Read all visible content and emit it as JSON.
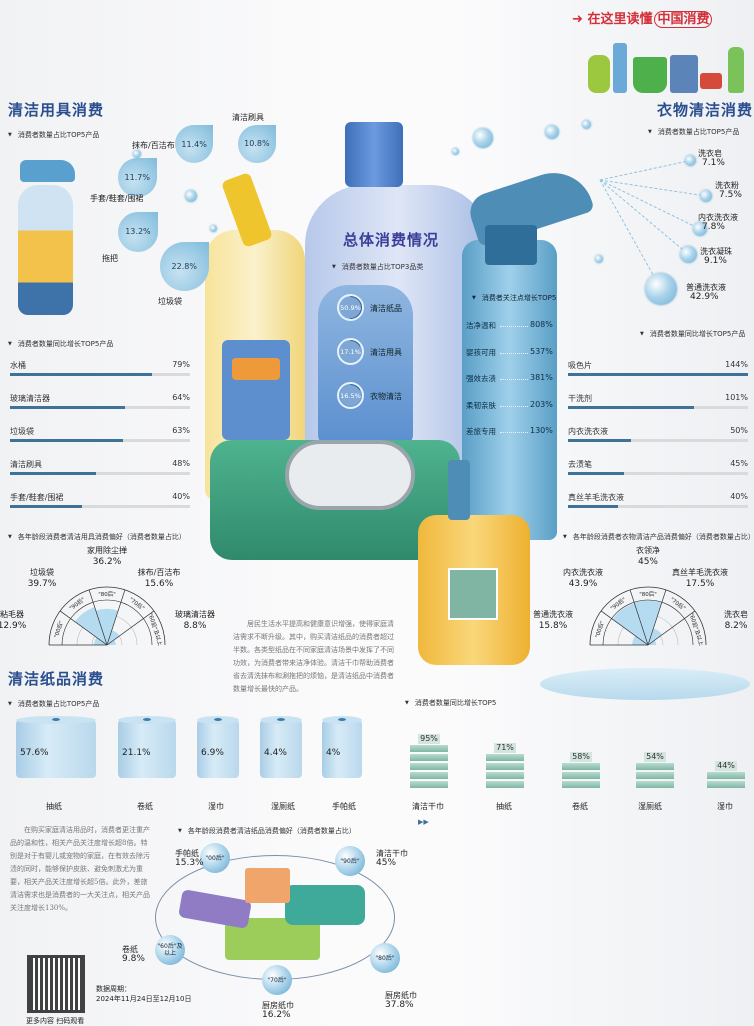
{
  "header": {
    "tagline_pre": "在这里读懂",
    "tagline_brand": "中国消费"
  },
  "sections": {
    "tools_title": "清洁用具消费",
    "laundry_title": "衣物清洁消费",
    "overall_title": "总体消费情况",
    "paper_title": "清洁纸品消费"
  },
  "paragraphs": {
    "middle": "居民生活水平提高和健康意识增强，使得家庭清洁需求不断升级。其中，购买清洁纸品的消费者超过半数。各类型纸品在不同家庭清洁场景中发挥了不同功效，为消费者带来洁净体验。清洁干巾帮助消费者省去清洗抹布和涮拖把的烦恼，是清洁纸品中消费者数量增长最快的产品。",
    "left": "在购买家庭清洁用品时，消费者更注重产品的温和性，相关产品关注度增长超8倍。特别是对于有婴儿或宠物的家庭，在有效去除污渍的同时，能够保护皮肤、避免刺激尤为重要，相关产品关注度增长超5倍。此外，差旅清洁需求也是消费者的一大关注点，相关产品关注度增长130%。"
  },
  "footer": {
    "qr_caption": "更多内容 扫码观看",
    "period_label": "数据周期：",
    "period_value": "2024年11月24日至12月10日"
  },
  "colors": {
    "title": "#2b4f8e",
    "bar": "#3d7398",
    "track": "#d9dadc",
    "tagline": "#d3303a",
    "water": "#a9d3ea",
    "stack": "#7fb6a3"
  },
  "icons": [
    "arrow-icon",
    "spray-bottle-icon",
    "toilet-cleaner-bottle-icon",
    "detergent-bottle-icon",
    "wet-wipes-pack-icon",
    "soap-dispenser-icon",
    "water-drop-icon",
    "qr-code"
  ],
  "chart_data": [
    {
      "type": "bubble",
      "subtitle": "消费者数量占比TOP5产品",
      "unit": "%",
      "items": [
        {
          "label": "抹布/百洁布",
          "value": 11.4
        },
        {
          "label": "清洁刷具",
          "value": 10.8
        },
        {
          "label": "手套/鞋套/围裙",
          "value": 11.7
        },
        {
          "label": "拖把",
          "value": 13.2
        },
        {
          "label": "垃圾袋",
          "value": 22.8
        }
      ]
    },
    {
      "type": "bar",
      "subtitle": "消费者数量同比增长TOP5产品",
      "unit": "%",
      "xlim": [
        0,
        100
      ],
      "items": [
        {
          "label": "水桶",
          "value": 79
        },
        {
          "label": "玻璃清洁器",
          "value": 64
        },
        {
          "label": "垃圾袋",
          "value": 63
        },
        {
          "label": "清洁刷具",
          "value": 48
        },
        {
          "label": "手套/鞋套/围裙",
          "value": 40
        }
      ]
    },
    {
      "type": "polar",
      "subtitle": "各年龄段消费者清洁用具消费偏好（消费者数量占比）",
      "unit": "%",
      "items": [
        {
          "age": "\"00后\"",
          "label": "粘毛器",
          "value": 12.9
        },
        {
          "age": "\"90后\"",
          "label": "垃圾袋",
          "value": 39.7
        },
        {
          "age": "\"80后\"",
          "label": "家用除尘掸",
          "value": 36.2
        },
        {
          "age": "\"70后\"",
          "label": "抹布/百洁布",
          "value": 15.6
        },
        {
          "age": "\"60后\"及以上",
          "label": "玻璃清洁器",
          "value": 8.8
        }
      ]
    },
    {
      "type": "bubble",
      "subtitle": "消费者数量占比TOP5产品",
      "unit": "%",
      "items": [
        {
          "label": "洗衣皂",
          "value": 7.1
        },
        {
          "label": "洗衣粉",
          "value": 7.5
        },
        {
          "label": "内衣洗衣液",
          "value": 7.8
        },
        {
          "label": "洗衣凝珠",
          "value": 9.1
        },
        {
          "label": "普通洗衣液",
          "value": 42.9
        }
      ]
    },
    {
      "type": "bar",
      "subtitle": "消费者数量同比增长TOP5产品",
      "unit": "%",
      "xlim": [
        0,
        144
      ],
      "items": [
        {
          "label": "吸色片",
          "value": 144
        },
        {
          "label": "干洗剂",
          "value": 101
        },
        {
          "label": "内衣洗衣液",
          "value": 50
        },
        {
          "label": "去渍笔",
          "value": 45
        },
        {
          "label": "真丝羊毛洗衣液",
          "value": 40
        }
      ]
    },
    {
      "type": "polar",
      "subtitle": "各年龄段消费者衣物清洁产品消费偏好（消费者数量占比）",
      "unit": "%",
      "items": [
        {
          "age": "\"00后\"",
          "label": "普通洗衣液",
          "value": 15.8
        },
        {
          "age": "\"90后\"",
          "label": "内衣洗衣液",
          "value": 43.9
        },
        {
          "age": "\"80后\"",
          "label": "衣领净",
          "value": 45.0
        },
        {
          "age": "\"70后\"",
          "label": "真丝羊毛洗衣液",
          "value": 17.5
        },
        {
          "age": "\"60后\"及以上",
          "label": "洗衣皂",
          "value": 8.2
        }
      ]
    },
    {
      "type": "donut",
      "subtitle": "消费者数量占比TOP3品类",
      "unit": "%",
      "items": [
        {
          "label": "清洁纸品",
          "value": 50.9
        },
        {
          "label": "清洁用具",
          "value": 17.1
        },
        {
          "label": "衣物清洁",
          "value": 16.5
        }
      ]
    },
    {
      "type": "table",
      "subtitle": "消费者关注点增长TOP5",
      "unit": "%",
      "items": [
        {
          "label": "洁净温和",
          "value": 808
        },
        {
          "label": "婴孩可用",
          "value": 537
        },
        {
          "label": "强效去渍",
          "value": 381
        },
        {
          "label": "柔韧亲肤",
          "value": 203
        },
        {
          "label": "差旅专用",
          "value": 130
        }
      ]
    },
    {
      "type": "bar",
      "subtitle": "消费者数量占比TOP5产品",
      "unit": "%",
      "items": [
        {
          "label": "抽纸",
          "value": 57.6
        },
        {
          "label": "卷纸",
          "value": 21.1
        },
        {
          "label": "湿巾",
          "value": 6.9
        },
        {
          "label": "湿厕纸",
          "value": 4.4
        },
        {
          "label": "手帕纸",
          "value": 4.0
        }
      ]
    },
    {
      "type": "bar",
      "subtitle": "消费者数量同比增长TOP5",
      "unit": "%",
      "ylim": [
        0,
        95
      ],
      "items": [
        {
          "label": "清洁干巾",
          "value": 95
        },
        {
          "label": "抽纸",
          "value": 71
        },
        {
          "label": "卷纸",
          "value": 58
        },
        {
          "label": "湿厕纸",
          "value": 54
        },
        {
          "label": "湿巾",
          "value": 44
        }
      ]
    },
    {
      "type": "bubble",
      "subtitle": "各年龄段消费者清洁纸品消费偏好（消费者数量占比）",
      "unit": "%",
      "items": [
        {
          "age": "\"00后\"",
          "label": "手帕纸",
          "value": 15.3
        },
        {
          "age": "\"90后\"",
          "label": "清洁干巾",
          "value": 45.0
        },
        {
          "age": "\"80后\"",
          "label": "厨房纸巾",
          "value": 37.8
        },
        {
          "age": "\"70后\"",
          "label": "厨房纸巾",
          "value": 16.2
        },
        {
          "age": "\"60后\"及以上",
          "label": "卷纸",
          "value": 9.8
        }
      ]
    }
  ]
}
